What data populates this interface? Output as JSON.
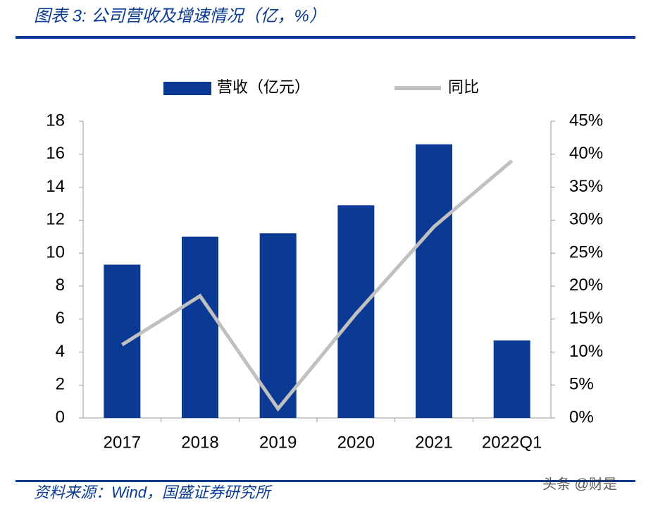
{
  "chart_data": {
    "type": "bar",
    "title": "图表 3: 公司营收及增速情况（亿，%）",
    "categories": [
      "2017",
      "2018",
      "2019",
      "2020",
      "2021",
      "2022Q1"
    ],
    "series": [
      {
        "name": "营收（亿元）",
        "type": "bar",
        "color": "#0b3a94",
        "values": [
          9.3,
          11.0,
          11.2,
          12.9,
          16.6,
          4.7
        ]
      },
      {
        "name": "同比",
        "type": "line",
        "axis": "y2",
        "color": "#c0c0c0",
        "values": [
          11.1,
          18.5,
          1.4,
          15.8,
          29.0,
          39.0
        ]
      }
    ],
    "ylim": [
      0,
      18
    ],
    "yticks": [
      0,
      2,
      4,
      6,
      8,
      10,
      12,
      14,
      16,
      18
    ],
    "y2lim": [
      0,
      45
    ],
    "y2ticks": [
      {
        "value": 0,
        "label": "0%"
      },
      {
        "value": 5,
        "label": "5%"
      },
      {
        "value": 10,
        "label": "10%"
      },
      {
        "value": 15,
        "label": "15%"
      },
      {
        "value": 20,
        "label": "20%"
      },
      {
        "value": 25,
        "label": "25%"
      },
      {
        "value": 30,
        "label": "30%"
      },
      {
        "value": 35,
        "label": "35%"
      },
      {
        "value": 40,
        "label": "40%"
      },
      {
        "value": 45,
        "label": "45%"
      }
    ]
  },
  "source": "资料来源：Wind，国盛证券研究所",
  "watermark": "头条 @财是"
}
